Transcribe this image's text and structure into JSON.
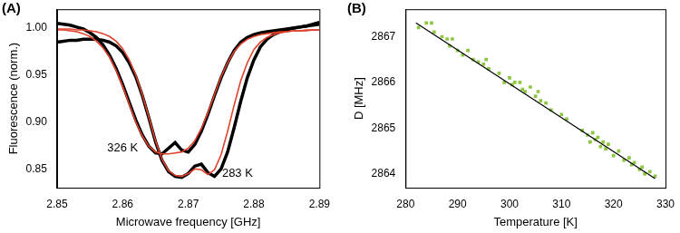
{
  "chart_data": [
    {
      "panel_label": "(A)",
      "type": "line",
      "x_label": "Microwave frequency [GHz]",
      "y_label": "Fluorescence (norm.)",
      "x": [
        2.85,
        2.851,
        2.852,
        2.853,
        2.854,
        2.855,
        2.856,
        2.857,
        2.858,
        2.859,
        2.86,
        2.861,
        2.862,
        2.863,
        2.864,
        2.865,
        2.866,
        2.867,
        2.868,
        2.869,
        2.87,
        2.871,
        2.872,
        2.873,
        2.874,
        2.875,
        2.876,
        2.877,
        2.878,
        2.879,
        2.88,
        2.881,
        2.882,
        2.883,
        2.884,
        2.885,
        2.886,
        2.887,
        2.888,
        2.889,
        2.89
      ],
      "xlim": [
        2.85,
        2.89
      ],
      "xticks": [
        2.85,
        2.86,
        2.87,
        2.88,
        2.89
      ],
      "ylim": [
        0.83,
        1.02
      ],
      "yticks": [
        0.85,
        {
          "value": 0.9,
          "label": "0.90"
        },
        0.95,
        {
          "value": 1.0,
          "label": "1.00"
        }
      ],
      "grid": false,
      "series": [
        {
          "name": "326 K",
          "color": "#000000",
          "line_style": "solid",
          "label_x": 2.86,
          "label_y": 0.872,
          "values": [
            1.005,
            1.004,
            1.003,
            1.001,
            0.999,
            0.995,
            0.99,
            0.982,
            0.971,
            0.957,
            0.94,
            0.921,
            0.902,
            0.886,
            0.874,
            0.867,
            0.866,
            0.872,
            0.878,
            0.87,
            0.868,
            0.876,
            0.89,
            0.908,
            0.928,
            0.947,
            0.963,
            0.976,
            0.985,
            0.99,
            0.993,
            0.995,
            0.996,
            0.997,
            0.998,
            0.999,
            1.0,
            1.001,
            1.002,
            1.003,
            1.004
          ],
          "fit": {
            "color": "#e0402a",
            "line_style": "solid",
            "values": [
              0.998,
              0.998,
              0.997,
              0.996,
              0.994,
              0.991,
              0.986,
              0.979,
              0.969,
              0.955,
              0.938,
              0.919,
              0.9,
              0.885,
              0.874,
              0.868,
              0.866,
              0.866,
              0.867,
              0.868,
              0.872,
              0.88,
              0.893,
              0.91,
              0.929,
              0.948,
              0.963,
              0.975,
              0.983,
              0.988,
              0.991,
              0.993,
              0.994,
              0.995,
              0.996,
              0.996,
              0.997,
              0.997,
              0.997,
              0.998,
              0.998
            ]
          }
        },
        {
          "name": "283 K",
          "color": "#000000",
          "line_style": "solid",
          "label_x": 2.8775,
          "label_y": 0.845,
          "values": [
            0.985,
            0.986,
            0.987,
            0.987,
            0.988,
            0.988,
            0.988,
            0.987,
            0.985,
            0.981,
            0.974,
            0.963,
            0.948,
            0.928,
            0.904,
            0.879,
            0.859,
            0.847,
            0.842,
            0.841,
            0.845,
            0.853,
            0.855,
            0.846,
            0.842,
            0.85,
            0.868,
            0.894,
            0.922,
            0.947,
            0.966,
            0.98,
            0.988,
            0.993,
            0.996,
            0.998,
            1.0,
            1.001,
            1.002,
            1.004,
            1.006
          ],
          "fit": {
            "color": "#e0402a",
            "line_style": "solid",
            "values": [
              0.999,
              0.999,
              0.999,
              0.998,
              0.998,
              0.997,
              0.996,
              0.994,
              0.991,
              0.986,
              0.978,
              0.966,
              0.95,
              0.929,
              0.905,
              0.88,
              0.86,
              0.848,
              0.843,
              0.842,
              0.845,
              0.85,
              0.849,
              0.844,
              0.849,
              0.865,
              0.89,
              0.918,
              0.944,
              0.963,
              0.977,
              0.985,
              0.99,
              0.993,
              0.995,
              0.996,
              0.997,
              0.997,
              0.998,
              0.998,
              0.998
            ]
          }
        }
      ]
    },
    {
      "panel_label": "(B)",
      "type": "scatter",
      "x_label": "Temperature [K]",
      "y_label": "D [MHz]",
      "xlim": [
        280,
        330
      ],
      "xticks": [
        280,
        290,
        300,
        310,
        320,
        330
      ],
      "ylim": [
        2863.7,
        2867.6
      ],
      "yticks": [
        2864,
        2865,
        2866,
        2867
      ],
      "grid": false,
      "series": [
        {
          "color": "#8dc63f",
          "marker": "square",
          "x": [
            282.5,
            284,
            285,
            285.5,
            287,
            288,
            288.5,
            289,
            290,
            291,
            292,
            293,
            294,
            295,
            295.5,
            296,
            298,
            299,
            300,
            300.5,
            301,
            302,
            302.5,
            303,
            304,
            305,
            305.5,
            306,
            307,
            308,
            310,
            311,
            314,
            315,
            315.5,
            316,
            316.5,
            317,
            317.5,
            318,
            318.5,
            319,
            320,
            321,
            322,
            323,
            323.5,
            324,
            325,
            325.5,
            326,
            327,
            328
          ],
          "values": [
            2867.2,
            2867.3,
            2867.3,
            2867.1,
            2867.0,
            2866.95,
            2866.8,
            2866.95,
            2866.7,
            2866.6,
            2866.7,
            2866.5,
            2866.45,
            2866.4,
            2866.5,
            2866.3,
            2866.2,
            2866.0,
            2866.1,
            2865.95,
            2866.0,
            2866.0,
            2865.85,
            2865.8,
            2865.9,
            2865.7,
            2865.8,
            2865.6,
            2865.55,
            2865.4,
            2865.3,
            2865.2,
            2864.95,
            2864.85,
            2864.7,
            2864.9,
            2864.75,
            2864.8,
            2864.6,
            2864.7,
            2864.55,
            2864.65,
            2864.4,
            2864.5,
            2864.3,
            2864.35,
            2864.2,
            2864.25,
            2864.1,
            2864.15,
            2864.0,
            2864.05,
            2863.95
          ],
          "fit": {
            "color": "#000000",
            "line_style": "solid",
            "x": [
              282,
              328
            ],
            "values": [
              2867.3,
              2863.9
            ]
          }
        }
      ]
    }
  ]
}
